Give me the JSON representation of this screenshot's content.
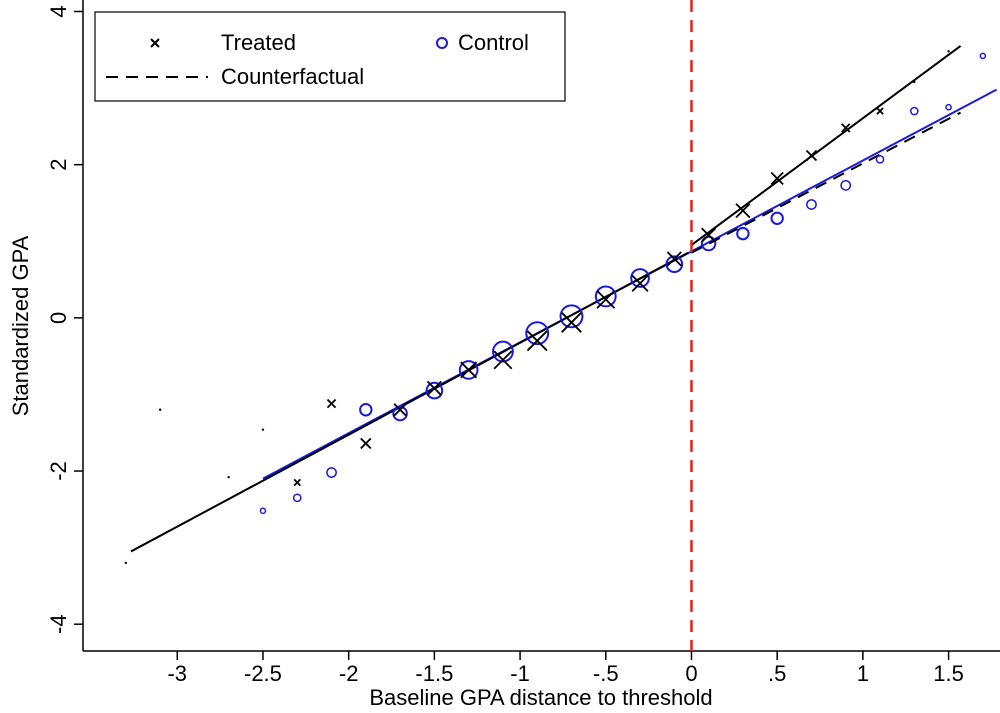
{
  "chart_data": {
    "type": "scatter",
    "xlabel": "Baseline GPA distance to threshold",
    "ylabel": "Standardized GPA",
    "xlim": [
      -3.55,
      1.8
    ],
    "ylim": [
      -4.35,
      4.15
    ],
    "xticks": [
      {
        "value": -3,
        "label": "-3"
      },
      {
        "value": -2.5,
        "label": "-2.5"
      },
      {
        "value": -2,
        "label": "-2"
      },
      {
        "value": -1.5,
        "label": "-1.5"
      },
      {
        "value": -1,
        "label": "-1"
      },
      {
        "value": -0.5,
        "label": "-.5"
      },
      {
        "value": 0,
        "label": "0"
      },
      {
        "value": 0.5,
        "label": ".5"
      },
      {
        "value": 1,
        "label": "1"
      },
      {
        "value": 1.5,
        "label": "1.5"
      }
    ],
    "yticks": [
      {
        "value": -4,
        "label": "-4"
      },
      {
        "value": -2,
        "label": "-2"
      },
      {
        "value": 0,
        "label": "0"
      },
      {
        "value": 2,
        "label": "2"
      },
      {
        "value": 4,
        "label": "4"
      }
    ],
    "grid": false,
    "threshold": {
      "x": 0,
      "color": "#e8201a",
      "style": "dashed"
    },
    "legend": {
      "position": "top-left",
      "entries": [
        {
          "label": "Treated",
          "marker": "x",
          "color": "#000000"
        },
        {
          "label": "Control",
          "marker": "circle",
          "color": "#1a1adb"
        },
        {
          "label": "Counterfactual",
          "marker": "dashed-line",
          "color": "#000000"
        }
      ]
    },
    "series": [
      {
        "name": "Treated",
        "marker": "x",
        "color": "#000000",
        "points": [
          {
            "x": -3.3,
            "y": -3.2,
            "size": 1
          },
          {
            "x": -3.1,
            "y": -1.2,
            "size": 1
          },
          {
            "x": -2.7,
            "y": -2.08,
            "size": 1
          },
          {
            "x": -2.5,
            "y": -1.46,
            "size": 1
          },
          {
            "x": -2.3,
            "y": -2.15,
            "size": 2
          },
          {
            "x": -2.1,
            "y": -1.12,
            "size": 3
          },
          {
            "x": -1.9,
            "y": -1.64,
            "size": 4
          },
          {
            "x": -1.7,
            "y": -1.2,
            "size": 5
          },
          {
            "x": -1.5,
            "y": -0.92,
            "size": 6
          },
          {
            "x": -1.3,
            "y": -0.68,
            "size": 7
          },
          {
            "x": -1.1,
            "y": -0.55,
            "size": 8
          },
          {
            "x": -0.9,
            "y": -0.3,
            "size": 9
          },
          {
            "x": -0.7,
            "y": -0.06,
            "size": 9
          },
          {
            "x": -0.5,
            "y": 0.24,
            "size": 8
          },
          {
            "x": -0.3,
            "y": 0.45,
            "size": 7
          },
          {
            "x": -0.1,
            "y": 0.77,
            "size": 6
          },
          {
            "x": 0.1,
            "y": 1.08,
            "size": 6
          },
          {
            "x": 0.3,
            "y": 1.4,
            "size": 6
          },
          {
            "x": 0.5,
            "y": 1.82,
            "size": 5
          },
          {
            "x": 0.7,
            "y": 2.12,
            "size": 4
          },
          {
            "x": 0.9,
            "y": 2.48,
            "size": 3
          },
          {
            "x": 1.1,
            "y": 2.7,
            "size": 2
          },
          {
            "x": 1.3,
            "y": 3.08,
            "size": 1
          },
          {
            "x": 1.5,
            "y": 3.48,
            "size": 1
          }
        ],
        "fit": [
          {
            "x": -3.27,
            "y": -3.05
          },
          {
            "x": -0.02,
            "y": 0.85
          }
        ],
        "fit_right": [
          {
            "x": 0.0,
            "y": 0.95
          },
          {
            "x": 1.57,
            "y": 3.55
          }
        ]
      },
      {
        "name": "Control",
        "marker": "circle",
        "color": "#1a1adb",
        "points": [
          {
            "x": -2.5,
            "y": -2.52,
            "size": 1
          },
          {
            "x": -2.3,
            "y": -2.35,
            "size": 2
          },
          {
            "x": -2.1,
            "y": -2.02,
            "size": 3
          },
          {
            "x": -1.9,
            "y": -1.2,
            "size": 4
          },
          {
            "x": -1.7,
            "y": -1.25,
            "size": 5
          },
          {
            "x": -1.5,
            "y": -0.95,
            "size": 6
          },
          {
            "x": -1.3,
            "y": -0.68,
            "size": 7
          },
          {
            "x": -1.1,
            "y": -0.44,
            "size": 8
          },
          {
            "x": -0.9,
            "y": -0.2,
            "size": 9
          },
          {
            "x": -0.7,
            "y": 0.02,
            "size": 9
          },
          {
            "x": -0.5,
            "y": 0.28,
            "size": 8
          },
          {
            "x": -0.3,
            "y": 0.52,
            "size": 7
          },
          {
            "x": -0.1,
            "y": 0.7,
            "size": 6
          },
          {
            "x": 0.1,
            "y": 0.97,
            "size": 5
          },
          {
            "x": 0.3,
            "y": 1.1,
            "size": 4
          },
          {
            "x": 0.5,
            "y": 1.3,
            "size": 4
          },
          {
            "x": 0.7,
            "y": 1.48,
            "size": 3
          },
          {
            "x": 0.9,
            "y": 1.73,
            "size": 3
          },
          {
            "x": 1.1,
            "y": 2.07,
            "size": 2
          },
          {
            "x": 1.3,
            "y": 2.7,
            "size": 2
          },
          {
            "x": 1.5,
            "y": 2.75,
            "size": 1
          },
          {
            "x": 1.7,
            "y": 3.42,
            "size": 1
          }
        ],
        "fit": [
          {
            "x": -2.5,
            "y": -2.1
          },
          {
            "x": 1.78,
            "y": 2.98
          }
        ]
      },
      {
        "name": "Counterfactual",
        "marker": "dashed-line",
        "color": "#000000",
        "fit": [
          {
            "x": 0.0,
            "y": 0.85
          },
          {
            "x": 1.57,
            "y": 2.68
          }
        ]
      }
    ]
  }
}
